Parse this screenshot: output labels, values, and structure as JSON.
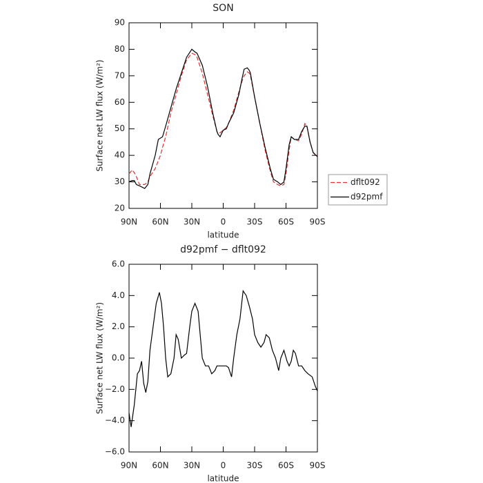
{
  "chart_data": [
    {
      "type": "line",
      "title": "SON",
      "xlabel": "latitude",
      "ylabel": "Surface net LW flux (W/m²)",
      "x": [
        90,
        87,
        85,
        83,
        80,
        75,
        72,
        70,
        65,
        62,
        60,
        58,
        55,
        50,
        45,
        40,
        35,
        30,
        27,
        25,
        20,
        15,
        10,
        6,
        5,
        3,
        0,
        -3,
        -5,
        -10,
        -15,
        -18,
        -20,
        -23,
        -25,
        -26,
        -30,
        -35,
        -40,
        -45,
        -48,
        -52,
        -55,
        -58,
        -60,
        -63,
        -65,
        -68,
        -72,
        -75,
        -78,
        -80,
        -83,
        -86,
        -90
      ],
      "series": [
        {
          "name": "dflt092",
          "color": "#e03030",
          "dash": true,
          "values": [
            33,
            34.5,
            33.5,
            32,
            29,
            29,
            30,
            32,
            35,
            38,
            40,
            43,
            47,
            56,
            63,
            70,
            76,
            78.5,
            78,
            77,
            71,
            63,
            55,
            49,
            48.5,
            48.5,
            49.5,
            50.5,
            52,
            57,
            64,
            68,
            70,
            71.5,
            71,
            70,
            62,
            52,
            42,
            34,
            30,
            29,
            28.5,
            29,
            33,
            42,
            47,
            46,
            45.5,
            48,
            52,
            51,
            45,
            41,
            40
          ]
        },
        {
          "name": "d92pmf",
          "color": "#000000",
          "dash": false,
          "values": [
            30,
            30.5,
            30.5,
            29,
            28.5,
            27.5,
            29,
            33,
            40,
            46,
            46.5,
            47,
            51,
            58,
            65,
            71,
            77,
            80,
            79,
            78.5,
            74,
            66,
            56,
            49,
            48,
            47,
            49.5,
            50,
            52,
            56,
            63,
            69,
            72.5,
            73,
            72,
            71,
            62,
            52,
            43,
            35,
            31,
            30,
            29,
            30,
            35,
            44,
            47,
            46,
            46,
            49,
            51,
            51,
            45,
            41,
            39.5
          ]
        }
      ],
      "xlim": [
        90,
        -90
      ],
      "xticks": [
        {
          "value": 90,
          "label": "90N"
        },
        {
          "value": 60,
          "label": "60N"
        },
        {
          "value": 30,
          "label": "30N"
        },
        0,
        {
          "value": -30,
          "label": "30S"
        },
        {
          "value": -60,
          "label": "60S"
        },
        {
          "value": -90,
          "label": "90S"
        }
      ],
      "ylim": [
        20,
        90
      ],
      "yticks": [
        20,
        30,
        40,
        50,
        60,
        70,
        80,
        90
      ],
      "legend": "right"
    },
    {
      "type": "line",
      "title": "d92pmf − dflt092",
      "xlabel": "latitude",
      "ylabel": "Surface net LW flux (W/m²)",
      "x": [
        90,
        88,
        85,
        82,
        80,
        78,
        76,
        74,
        72,
        70,
        67,
        64,
        61,
        59,
        57,
        55,
        53,
        50,
        47,
        45,
        43,
        40,
        37,
        35,
        32,
        30,
        27,
        24,
        22,
        20,
        17,
        14,
        11,
        8,
        6,
        3,
        0,
        -3,
        -5,
        -8,
        -10,
        -13,
        -16,
        -19,
        -22,
        -25,
        -28,
        -30,
        -33,
        -36,
        -39,
        -41,
        -44,
        -47,
        -50,
        -53,
        -55,
        -58,
        -61,
        -63,
        -65,
        -67,
        -69,
        -72,
        -75,
        -78,
        -81,
        -85,
        -88,
        -90
      ],
      "series": [
        {
          "name": "d92pmf − dflt092",
          "color": "#000000",
          "dash": false,
          "values": [
            -3.5,
            -4.4,
            -3,
            -1,
            -0.8,
            -0.2,
            -1.6,
            -2.2,
            -1.5,
            0.5,
            2,
            3.5,
            4.2,
            3.5,
            2,
            0,
            -1.2,
            -1,
            0,
            1.5,
            1.2,
            0,
            0.2,
            0.3,
            2,
            3,
            3.5,
            3,
            1.5,
            0,
            -0.5,
            -0.5,
            -1,
            -0.8,
            -0.5,
            -0.5,
            -0.5,
            -0.5,
            -0.6,
            -1.2,
            0,
            1.5,
            2.5,
            4.3,
            4,
            3.3,
            2.5,
            1.5,
            1,
            0.7,
            1,
            1.5,
            1.3,
            0.5,
            0,
            -0.8,
            0,
            0.5,
            -0.2,
            -0.5,
            -0.2,
            0.5,
            0.3,
            -0.5,
            -0.5,
            -0.8,
            -1,
            -1.2,
            -1.8,
            -2.1
          ]
        }
      ],
      "xlim": [
        90,
        -90
      ],
      "xticks": [
        {
          "value": 90,
          "label": "90N"
        },
        {
          "value": 60,
          "label": "60N"
        },
        {
          "value": 30,
          "label": "30N"
        },
        0,
        {
          "value": -30,
          "label": "30S"
        },
        {
          "value": -60,
          "label": "60S"
        },
        {
          "value": -90,
          "label": "90S"
        }
      ],
      "ylim": [
        -6,
        6
      ],
      "yticks": [
        {
          "value": -6,
          "label": "−6.0"
        },
        {
          "value": -4,
          "label": "−4.0"
        },
        {
          "value": -2,
          "label": "−2.0"
        },
        {
          "value": 0,
          "label": "0.0"
        },
        {
          "value": 2,
          "label": "2.0"
        },
        {
          "value": 4,
          "label": "4.0"
        },
        {
          "value": 6,
          "label": "6.0"
        }
      ]
    }
  ]
}
